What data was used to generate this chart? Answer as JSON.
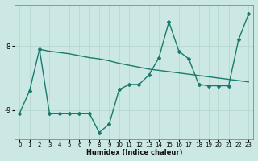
{
  "xlabel": "Humidex (Indice chaleur)",
  "bg_color": "#cce8e4",
  "line_color": "#1a7a6e",
  "grid_color": "#b8d8d0",
  "xlim": [
    -0.5,
    23.5
  ],
  "ylim": [
    -9.45,
    -7.35
  ],
  "yticks": [
    -9,
    -8
  ],
  "xticks": [
    0,
    1,
    2,
    3,
    4,
    5,
    6,
    7,
    8,
    9,
    10,
    11,
    12,
    13,
    14,
    15,
    16,
    17,
    18,
    19,
    20,
    21,
    22,
    23
  ],
  "line1_x": [
    0,
    1,
    2,
    3,
    4,
    5,
    6,
    7,
    8,
    9,
    10,
    11,
    12,
    13,
    14,
    15,
    16,
    17,
    18,
    19,
    20,
    21,
    22,
    23
  ],
  "line1_y": [
    -9.05,
    -8.7,
    -8.05,
    -9.05,
    -9.05,
    -9.05,
    -9.05,
    -9.05,
    -9.35,
    -9.22,
    -8.68,
    -8.6,
    -8.6,
    -8.45,
    -8.18,
    -7.62,
    -8.08,
    -8.2,
    -8.6,
    -8.62,
    -8.62,
    -8.62,
    -7.9,
    -7.5
  ],
  "line2_x": [
    2,
    3,
    4,
    5,
    6,
    7,
    8,
    9,
    10,
    11,
    12,
    13,
    14,
    15,
    16,
    17,
    18,
    19,
    20,
    21,
    22,
    23
  ],
  "line2_y": [
    -8.05,
    -8.08,
    -8.1,
    -8.12,
    -8.15,
    -8.18,
    -8.2,
    -8.23,
    -8.27,
    -8.3,
    -8.33,
    -8.36,
    -8.38,
    -8.4,
    -8.42,
    -8.44,
    -8.46,
    -8.48,
    -8.5,
    -8.52,
    -8.54,
    -8.56
  ]
}
